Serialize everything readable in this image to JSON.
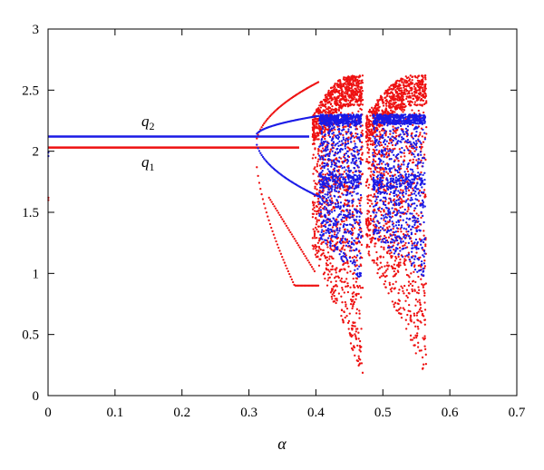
{
  "chart_data": {
    "type": "scatter",
    "title": "",
    "xlabel": "α",
    "ylabel": "",
    "xlim": [
      0,
      0.7
    ],
    "ylim": [
      0,
      3
    ],
    "xticks": [
      0,
      0.1,
      0.2,
      0.3,
      0.4,
      0.5,
      0.6,
      0.7
    ],
    "xtick_labels": [
      "0",
      "0.1",
      "0.2",
      "0.3",
      "0.4",
      "0.5",
      "0.6",
      "0.7"
    ],
    "yticks": [
      0,
      0.5,
      1,
      1.5,
      2,
      2.5,
      3
    ],
    "ytick_labels": [
      "0",
      "0.5",
      "1",
      "1.5",
      "2",
      "2.5",
      "3"
    ],
    "grid": false,
    "series": [
      {
        "name": "q1",
        "label_var": "q",
        "label_sub": "1",
        "color": "#ee1111",
        "fixed_value": 2.03,
        "bifurcation_alpha": 0.31,
        "stable_until_alpha": 0.375,
        "chaos_start_alpha": 0.405,
        "chaos_end_alpha": 0.563,
        "range_in_chaos": [
          0.05,
          2.62
        ]
      },
      {
        "name": "q2",
        "label_var": "q",
        "label_sub": "2",
        "color": "#1a1ae6",
        "fixed_value": 2.12,
        "bifurcation_alpha": 0.31,
        "stable_until_alpha": 0.375,
        "chaos_start_alpha": 0.405,
        "chaos_end_alpha": 0.563,
        "range_in_chaos": [
          0.9,
          2.3
        ]
      }
    ]
  }
}
